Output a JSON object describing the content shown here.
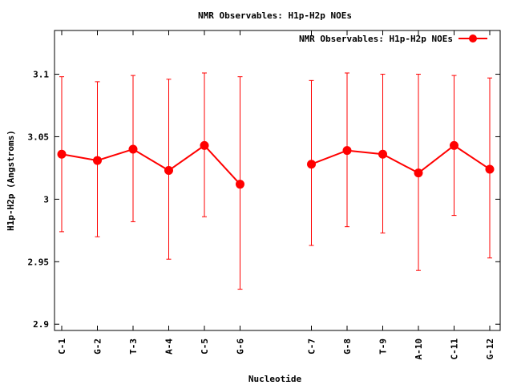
{
  "chart_data": {
    "type": "line",
    "title": "NMR Observables: H1p-H2p NOEs",
    "xlabel": "Nucleotide",
    "ylabel": "H1p-H2p (Angstroms)",
    "ylim": [
      2.895,
      3.135
    ],
    "yticks": [
      2.9,
      2.95,
      3,
      3.05,
      3.1
    ],
    "ytick_labels": [
      "2.9",
      "2.95",
      "3",
      "3.05",
      "3.1"
    ],
    "grid": false,
    "legend": "top-right",
    "color": "#ff0000",
    "categories": [
      "C-1",
      "G-2",
      "T-3",
      "A-4",
      "C-5",
      "G-6",
      "C-7",
      "G-8",
      "T-9",
      "A-10",
      "C-11",
      "G-12"
    ],
    "series": [
      {
        "name": "NMR Observables: H1p-H2p NOEs",
        "segments": [
          {
            "points": [
              {
                "x": "C-1",
                "y": 3.036,
                "ylow": 2.974,
                "yhigh": 3.098
              },
              {
                "x": "G-2",
                "y": 3.031,
                "ylow": 2.97,
                "yhigh": 3.094
              },
              {
                "x": "T-3",
                "y": 3.04,
                "ylow": 2.982,
                "yhigh": 3.099
              },
              {
                "x": "A-4",
                "y": 3.023,
                "ylow": 2.952,
                "yhigh": 3.096
              },
              {
                "x": "C-5",
                "y": 3.043,
                "ylow": 2.986,
                "yhigh": 3.101
              },
              {
                "x": "G-6",
                "y": 3.012,
                "ylow": 2.928,
                "yhigh": 3.098
              }
            ]
          },
          {
            "points": [
              {
                "x": "C-7",
                "y": 3.028,
                "ylow": 2.963,
                "yhigh": 3.095
              },
              {
                "x": "G-8",
                "y": 3.039,
                "ylow": 2.978,
                "yhigh": 3.101
              },
              {
                "x": "T-9",
                "y": 3.036,
                "ylow": 2.973,
                "yhigh": 3.1
              },
              {
                "x": "A-10",
                "y": 3.021,
                "ylow": 2.943,
                "yhigh": 3.1
              },
              {
                "x": "C-11",
                "y": 3.043,
                "ylow": 2.987,
                "yhigh": 3.099
              },
              {
                "x": "G-12",
                "y": 3.024,
                "ylow": 2.953,
                "yhigh": 3.097
              }
            ]
          }
        ]
      }
    ]
  }
}
